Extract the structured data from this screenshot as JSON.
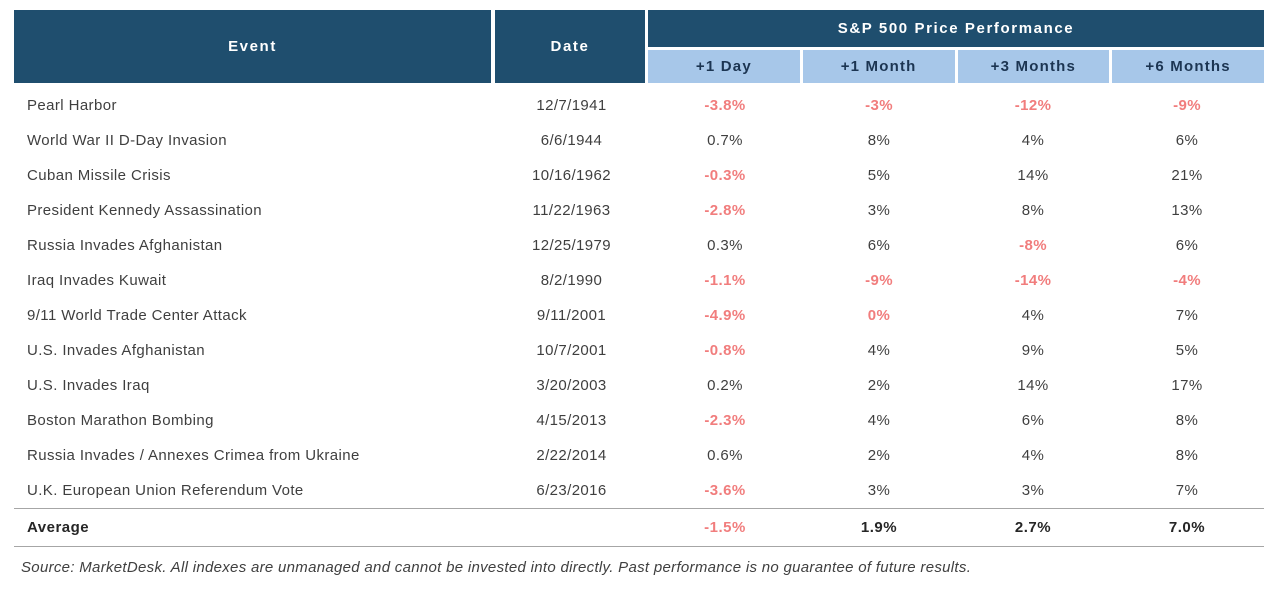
{
  "table": {
    "header": {
      "event_label": "Event",
      "date_label": "Date",
      "group_label": "S&P 500 Price Performance",
      "sub_labels": [
        "+1 Day",
        "+1 Month",
        "+3 Months",
        "+6 Months"
      ]
    },
    "rows": [
      {
        "event": "Pearl Harbor",
        "date": "12/7/1941",
        "values": [
          "-3.8%",
          "-3%",
          "-12%",
          "-9%"
        ]
      },
      {
        "event": "World War II D-Day Invasion",
        "date": "6/6/1944",
        "values": [
          "0.7%",
          "8%",
          "4%",
          "6%"
        ]
      },
      {
        "event": "Cuban Missile Crisis",
        "date": "10/16/1962",
        "values": [
          "-0.3%",
          "5%",
          "14%",
          "21%"
        ]
      },
      {
        "event": "President Kennedy Assassination",
        "date": "11/22/1963",
        "values": [
          "-2.8%",
          "3%",
          "8%",
          "13%"
        ]
      },
      {
        "event": "Russia Invades Afghanistan",
        "date": "12/25/1979",
        "values": [
          "0.3%",
          "6%",
          "-8%",
          "6%"
        ]
      },
      {
        "event": "Iraq Invades Kuwait",
        "date": "8/2/1990",
        "values": [
          "-1.1%",
          "-9%",
          "-14%",
          "-4%"
        ]
      },
      {
        "event": "9/11 World Trade Center Attack",
        "date": "9/11/2001",
        "values": [
          "-4.9%",
          "0%",
          "4%",
          "7%"
        ]
      },
      {
        "event": "U.S. Invades Afghanistan",
        "date": "10/7/2001",
        "values": [
          "-0.8%",
          "4%",
          "9%",
          "5%"
        ]
      },
      {
        "event": "U.S. Invades Iraq",
        "date": "3/20/2003",
        "values": [
          "0.2%",
          "2%",
          "14%",
          "17%"
        ]
      },
      {
        "event": "Boston Marathon Bombing",
        "date": "4/15/2013",
        "values": [
          "-2.3%",
          "4%",
          "6%",
          "8%"
        ]
      },
      {
        "event": "Russia Invades / Annexes Crimea from Ukraine",
        "date": "2/22/2014",
        "values": [
          "0.6%",
          "2%",
          "4%",
          "8%"
        ]
      },
      {
        "event": "U.K. European Union Referendum Vote",
        "date": "6/23/2016",
        "values": [
          "-3.6%",
          "3%",
          "3%",
          "7%"
        ]
      }
    ],
    "average": {
      "label": "Average",
      "values": [
        "-1.5%",
        "1.9%",
        "2.7%",
        "7.0%"
      ]
    },
    "footnote": "Source: MarketDesk. All indexes are unmanaged and cannot be invested into directly. Past performance is no guarantee of future results."
  },
  "colors": {
    "header_navy": "#1F4E6E",
    "subheader_blue": "#A7C7E9",
    "subheader_text": "#1C3552",
    "negative_red": "#F17D7D",
    "body_text": "#3F3F3F",
    "divider_gray": "#A6A6A6"
  },
  "chart_data": {
    "type": "table",
    "title": "S&P 500 Price Performance",
    "columns": [
      "Event",
      "Date",
      "+1 Day",
      "+1 Month",
      "+3 Months",
      "+6 Months"
    ],
    "rows": [
      [
        "Pearl Harbor",
        "12/7/1941",
        "-3.8%",
        "-3%",
        "-12%",
        "-9%"
      ],
      [
        "World War II D-Day Invasion",
        "6/6/1944",
        "0.7%",
        "8%",
        "4%",
        "6%"
      ],
      [
        "Cuban Missile Crisis",
        "10/16/1962",
        "-0.3%",
        "5%",
        "14%",
        "21%"
      ],
      [
        "President Kennedy Assassination",
        "11/22/1963",
        "-2.8%",
        "3%",
        "8%",
        "13%"
      ],
      [
        "Russia Invades Afghanistan",
        "12/25/1979",
        "0.3%",
        "6%",
        "-8%",
        "6%"
      ],
      [
        "Iraq Invades Kuwait",
        "8/2/1990",
        "-1.1%",
        "-9%",
        "-14%",
        "-4%"
      ],
      [
        "9/11 World Trade Center Attack",
        "9/11/2001",
        "-4.9%",
        "0%",
        "4%",
        "7%"
      ],
      [
        "U.S. Invades Afghanistan",
        "10/7/2001",
        "-0.8%",
        "4%",
        "9%",
        "5%"
      ],
      [
        "U.S. Invades Iraq",
        "3/20/2003",
        "0.2%",
        "2%",
        "14%",
        "17%"
      ],
      [
        "Boston Marathon Bombing",
        "4/15/2013",
        "-2.3%",
        "4%",
        "6%",
        "8%"
      ],
      [
        "Russia Invades / Annexes Crimea from Ukraine",
        "2/22/2014",
        "0.6%",
        "2%",
        "4%",
        "8%"
      ],
      [
        "U.K. European Union Referendum Vote",
        "6/23/2016",
        "-3.6%",
        "3%",
        "3%",
        "7%"
      ]
    ],
    "average_row": [
      "Average",
      "",
      "-1.5%",
      "1.9%",
      "2.7%",
      "7.0%"
    ],
    "footnote": "Source: MarketDesk. All indexes are unmanaged and cannot be invested into directly. Past performance is no guarantee of future results.",
    "style_note": "values <= 0 rendered bold salmon-red"
  }
}
